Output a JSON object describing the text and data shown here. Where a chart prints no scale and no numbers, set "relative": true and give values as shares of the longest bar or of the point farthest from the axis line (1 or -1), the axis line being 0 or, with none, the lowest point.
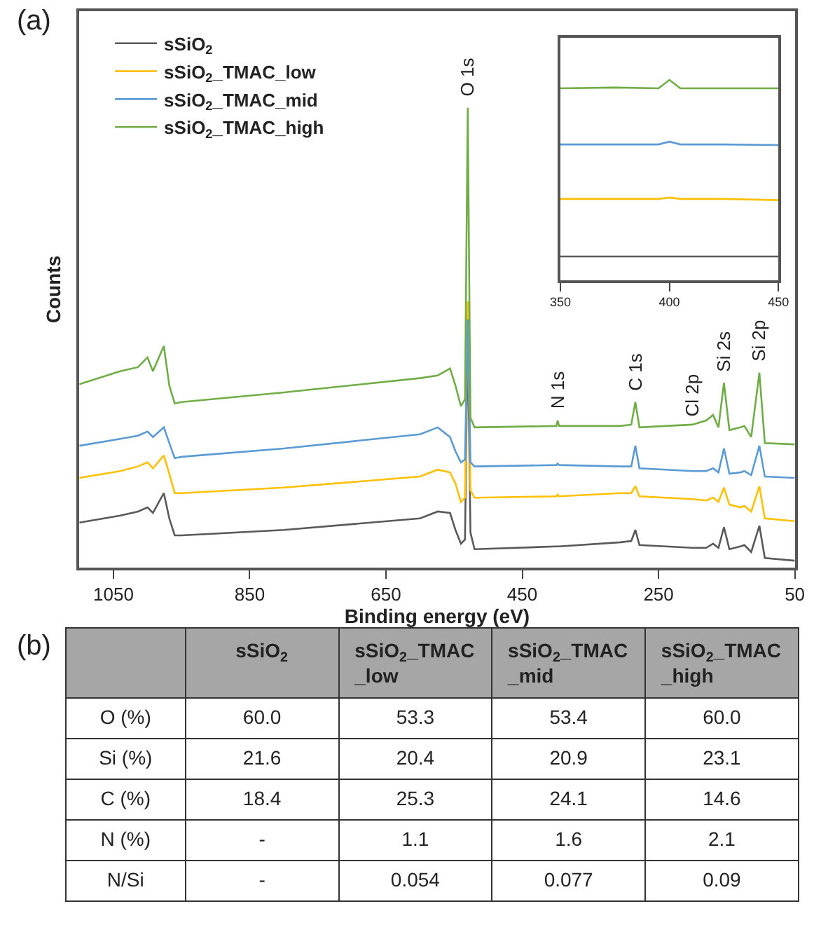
{
  "chart_data": [
    {
      "type": "line",
      "xlabel": "Binding energy (eV)",
      "ylabel": "Counts",
      "relative": true,
      "legend": "top left",
      "tick_labels": "x",
      "xlim": [
        1100,
        50
      ],
      "xticks": [
        1050,
        850,
        650,
        450,
        250,
        50
      ],
      "x": [
        1100,
        1040,
        1014,
        1000,
        992,
        976,
        968,
        960,
        950,
        800,
        600,
        574,
        556,
        548,
        540,
        534,
        530,
        526,
        520,
        400,
        398,
        396,
        306,
        290,
        284,
        278,
        200,
        180,
        170,
        162,
        154,
        146,
        130,
        124,
        114,
        102,
        94,
        50
      ],
      "series": [
        {
          "name": "sSiO$_{2}$",
          "color": "#595959",
          "values": [
            0.098,
            0.113,
            0.122,
            0.131,
            0.119,
            0.162,
            0.107,
            0.07,
            0.07,
            0.082,
            0.107,
            0.122,
            0.119,
            0.082,
            0.052,
            0.061,
            0.518,
            0.076,
            0.04,
            0.046,
            0.046,
            0.046,
            0.055,
            0.058,
            0.082,
            0.049,
            0.043,
            0.043,
            0.052,
            0.043,
            0.088,
            0.04,
            0.046,
            0.049,
            0.034,
            0.091,
            0.021,
            0.015
          ]
        },
        {
          "name": "sSiO$_{2}$_TMAC_low",
          "color": "#ffc000",
          "values": [
            0.195,
            0.21,
            0.22,
            0.229,
            0.216,
            0.244,
            0.204,
            0.162,
            0.162,
            0.174,
            0.198,
            0.213,
            0.207,
            0.183,
            0.143,
            0.152,
            0.579,
            0.168,
            0.152,
            0.155,
            0.159,
            0.155,
            0.162,
            0.162,
            0.177,
            0.155,
            0.149,
            0.146,
            0.152,
            0.143,
            0.174,
            0.137,
            0.131,
            0.134,
            0.122,
            0.177,
            0.107,
            0.101
          ]
        },
        {
          "name": "sSiO$_{2}$_TMAC_mid",
          "color": "#5b9bd5",
          "values": [
            0.265,
            0.28,
            0.287,
            0.296,
            0.284,
            0.305,
            0.271,
            0.238,
            0.241,
            0.259,
            0.29,
            0.305,
            0.284,
            0.253,
            0.229,
            0.235,
            0.54,
            0.229,
            0.22,
            0.223,
            0.226,
            0.223,
            0.22,
            0.22,
            0.265,
            0.216,
            0.21,
            0.21,
            0.216,
            0.207,
            0.259,
            0.204,
            0.207,
            0.21,
            0.201,
            0.265,
            0.198,
            0.195
          ]
        },
        {
          "name": "sSiO$_{2}$_TMAC_high",
          "color": "#70ad47",
          "values": [
            0.399,
            0.427,
            0.436,
            0.457,
            0.427,
            0.482,
            0.396,
            0.357,
            0.36,
            0.381,
            0.412,
            0.418,
            0.433,
            0.396,
            0.351,
            0.366,
            1,
            0.326,
            0.305,
            0.308,
            0.32,
            0.308,
            0.308,
            0.311,
            0.36,
            0.305,
            0.311,
            0.32,
            0.332,
            0.305,
            0.402,
            0.299,
            0.305,
            0.308,
            0.284,
            0.424,
            0.271,
            0.268
          ]
        }
      ],
      "annotations": [
        "(a)",
        {
          "text": "O 1s",
          "x": 530,
          "y": 1
        },
        {
          "text": "N 1s",
          "x": 398,
          "y": 0.32
        },
        {
          "text": "C 1s",
          "x": 284,
          "y": 0.36
        },
        {
          "text": "Cl 2p",
          "x": 200,
          "y": 0.305
        },
        {
          "text": "Si 2s",
          "x": 154,
          "y": 0.402
        },
        {
          "text": "Si 2p",
          "x": 102,
          "y": 0.424
        }
      ]
    },
    {
      "type": "line",
      "relative": true,
      "tick_labels": "x",
      "xlim": [
        350,
        450
      ],
      "xticks": [
        350,
        400,
        450
      ],
      "x": [
        350,
        375,
        395,
        400,
        405,
        425,
        450
      ],
      "series": [
        {
          "color": "#595959",
          "values": [
            0.119,
            0.119,
            0.119,
            0.119,
            0.119,
            0.119,
            0.119
          ]
        },
        {
          "color": "#ffc000",
          "values": [
            0.406,
            0.406,
            0.406,
            0.413,
            0.406,
            0.406,
            0.4
          ]
        },
        {
          "color": "#5b9bd5",
          "values": [
            0.678,
            0.678,
            0.678,
            0.692,
            0.678,
            0.678,
            0.675
          ]
        },
        {
          "color": "#70ad47",
          "values": [
            0.958,
            0.962,
            0.958,
            1,
            0.958,
            0.958,
            0.958
          ]
        }
      ]
    },
    {
      "type": "other",
      "categories": [
        null,
        "sSiO$_{2}$",
        "sSiO$_{2}$_TMAC_low",
        "sSiO$_{2}$_TMAC_mid",
        "sSiO$_{2}$_TMAC_high"
      ],
      "y_categories": [
        "O (%)",
        "Si (%)",
        "C (%)",
        "N (%)",
        "N/Si"
      ],
      "cell_labels": [
        [
          "60.0",
          "53.3",
          "53.4",
          "60.0"
        ],
        [
          "21.6",
          "20.4",
          "20.9",
          "23.1"
        ],
        [
          "18.4",
          "25.3",
          "24.1",
          "14.6"
        ],
        [
          "-",
          "1.1",
          "1.6",
          "2.1"
        ],
        [
          "-",
          "0.054",
          "0.077",
          "0.09"
        ]
      ],
      "annotations": [
        "(b)"
      ]
    }
  ]
}
